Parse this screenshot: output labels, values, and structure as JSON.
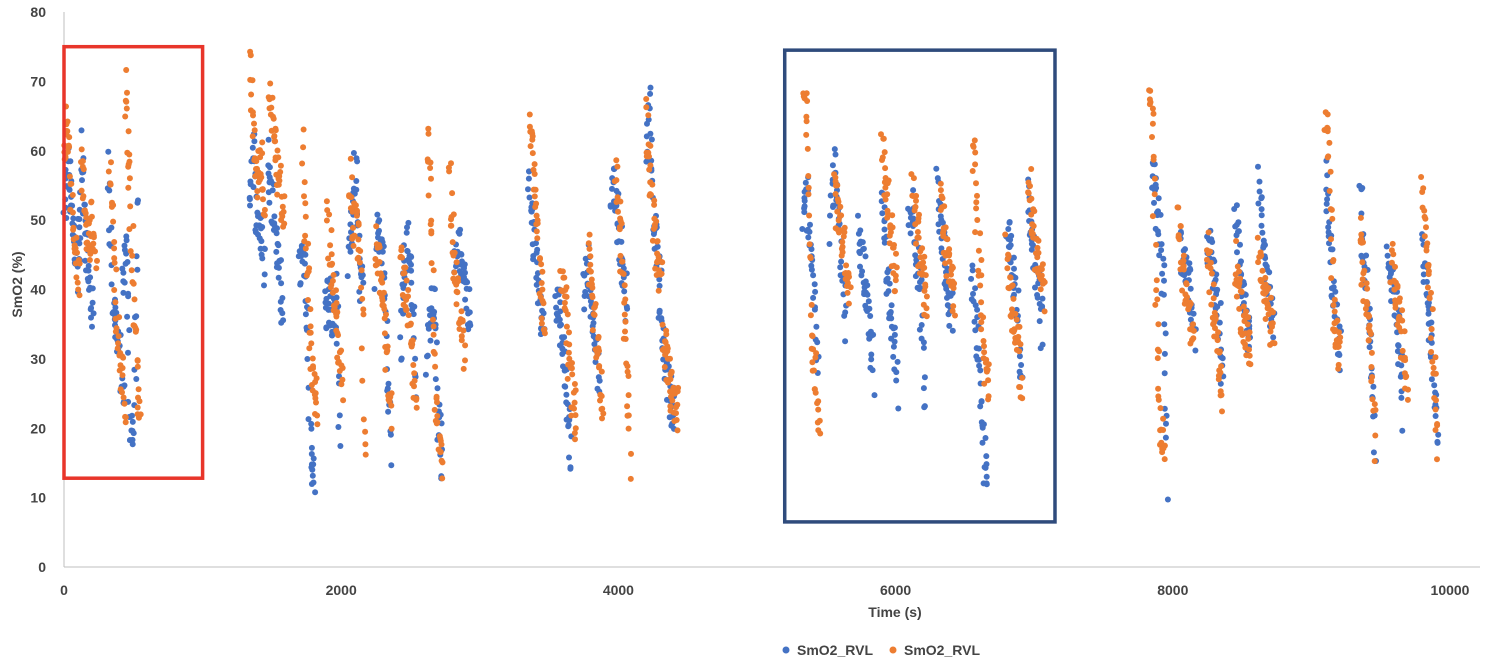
{
  "chart_data": {
    "type": "scatter",
    "title": "",
    "xlabel": "Time (s)",
    "ylabel": "SmO2 (%)",
    "xlim": [
      0,
      10000
    ],
    "ylim": [
      0,
      80
    ],
    "x_ticks": [
      0,
      2000,
      4000,
      6000,
      8000,
      10000
    ],
    "y_ticks": [
      0,
      10,
      20,
      30,
      40,
      50,
      60,
      70,
      80
    ],
    "grid": false,
    "legend": "bottom",
    "colors": {
      "blue": "#4472C4",
      "orange": "#ED7D31",
      "red_box": "#E8352A",
      "navy_box": "#2F4B7C"
    },
    "series": [
      {
        "name": "SmO2_RVL",
        "color": "#4472C4",
        "segments": [
          [
            0,
            50,
            58,
            52,
            44,
            50
          ],
          [
            100,
            40,
            60,
            48,
            40,
            36
          ],
          [
            320,
            60,
            40,
            35,
            30,
            24
          ],
          [
            420,
            40,
            48,
            22,
            18,
            53
          ],
          [
            1340,
            53,
            60,
            48,
            50,
            44
          ],
          [
            1470,
            60,
            54,
            48,
            42,
            37
          ],
          [
            1700,
            42,
            45,
            38,
            15,
            13
          ],
          [
            1880,
            36,
            40,
            34,
            40,
            16
          ],
          [
            2050,
            44,
            50,
            58,
            42,
            40
          ],
          [
            2250,
            42,
            50,
            46,
            30,
            18
          ],
          [
            2430,
            30,
            44,
            48,
            40,
            25
          ],
          [
            2620,
            30,
            36,
            40,
            22,
            12
          ],
          [
            2820,
            42,
            46,
            44,
            40,
            35
          ],
          [
            3350,
            56,
            50,
            44,
            40,
            34
          ],
          [
            3550,
            38,
            36,
            30,
            22,
            16
          ],
          [
            3750,
            40,
            44,
            38,
            32,
            26
          ],
          [
            3950,
            52,
            56,
            48,
            44,
            38
          ],
          [
            4200,
            58,
            66,
            50,
            46,
            40
          ],
          [
            4300,
            36,
            30,
            26,
            24,
            22
          ],
          [
            5330,
            48,
            56,
            46,
            40,
            30
          ],
          [
            5530,
            48,
            60,
            52,
            44,
            34
          ],
          [
            5730,
            48,
            44,
            40,
            36,
            28
          ],
          [
            5900,
            56,
            44,
            38,
            34,
            26
          ],
          [
            6100,
            50,
            52,
            44,
            38,
            23
          ],
          [
            6300,
            56,
            48,
            44,
            38,
            37
          ],
          [
            6550,
            42,
            36,
            30,
            18,
            11
          ],
          [
            6800,
            46,
            48,
            42,
            36,
            24
          ],
          [
            6950,
            54,
            50,
            44,
            40,
            34
          ],
          [
            7850,
            58,
            54,
            48,
            40,
            13
          ],
          [
            8050,
            46,
            44,
            42,
            40,
            30
          ],
          [
            8250,
            48,
            44,
            40,
            36,
            27
          ],
          [
            8450,
            50,
            46,
            40,
            36,
            31
          ],
          [
            8620,
            55,
            46,
            42,
            38,
            35
          ],
          [
            9100,
            56,
            48,
            40,
            34,
            30
          ],
          [
            9350,
            55,
            44,
            38,
            30,
            15
          ],
          [
            9550,
            45,
            42,
            38,
            32,
            22
          ],
          [
            9800,
            46,
            40,
            34,
            26,
            19
          ]
        ]
      },
      {
        "name": "SmO2_RVL",
        "color": "#ED7D31",
        "segments": [
          [
            0,
            60,
            64,
            54,
            46,
            42
          ],
          [
            120,
            58,
            52,
            46,
            50,
            44
          ],
          [
            330,
            58,
            46,
            34,
            28,
            24
          ],
          [
            440,
            72,
            60,
            44,
            30,
            21
          ],
          [
            1340,
            72,
            62,
            56,
            60,
            52
          ],
          [
            1480,
            69,
            64,
            58,
            54,
            50
          ],
          [
            1720,
            62,
            46,
            34,
            26,
            22
          ],
          [
            1900,
            51,
            44,
            38,
            30,
            26
          ],
          [
            2060,
            56,
            50,
            48,
            44,
            15
          ],
          [
            2250,
            48,
            42,
            38,
            30,
            20
          ],
          [
            2430,
            46,
            40,
            36,
            30,
            25
          ],
          [
            2620,
            63,
            50,
            28,
            20,
            16
          ],
          [
            2780,
            57,
            46,
            40,
            36,
            30
          ],
          [
            3360,
            66,
            60,
            50,
            40,
            36
          ],
          [
            3590,
            44,
            38,
            30,
            24,
            21
          ],
          [
            3780,
            46,
            40,
            34,
            28,
            24
          ],
          [
            3980,
            58,
            50,
            40,
            30,
            16
          ],
          [
            4200,
            65,
            58,
            50,
            44,
            40
          ],
          [
            4320,
            34,
            30,
            26,
            24,
            22
          ],
          [
            5340,
            70,
            62,
            34,
            28,
            20
          ],
          [
            5560,
            56,
            50,
            48,
            44,
            40
          ],
          [
            5900,
            62,
            56,
            50,
            46,
            40
          ],
          [
            6120,
            55,
            50,
            46,
            42,
            36
          ],
          [
            6320,
            54,
            48,
            44,
            42,
            38
          ],
          [
            6560,
            62,
            50,
            40,
            30,
            26
          ],
          [
            6800,
            46,
            40,
            36,
            32,
            26
          ],
          [
            6960,
            56,
            50,
            46,
            42,
            40
          ],
          [
            7830,
            67,
            62,
            34,
            20,
            16
          ],
          [
            8040,
            50,
            44,
            40,
            36,
            32
          ],
          [
            8250,
            48,
            40,
            36,
            30,
            24
          ],
          [
            8450,
            44,
            40,
            36,
            34,
            30
          ],
          [
            8620,
            46,
            42,
            38,
            36,
            33
          ],
          [
            9100,
            65,
            58,
            40,
            34,
            30
          ],
          [
            9350,
            50,
            42,
            36,
            30,
            18
          ],
          [
            9580,
            44,
            40,
            36,
            32,
            26
          ],
          [
            9800,
            56,
            48,
            40,
            30,
            19
          ]
        ]
      }
    ],
    "annotations": [
      {
        "type": "rect",
        "color": "#E8352A",
        "x": [
          0,
          1000
        ],
        "y": [
          12.8,
          75
        ]
      },
      {
        "type": "rect",
        "color": "#2F4B7C",
        "x": [
          5200,
          7150
        ],
        "y": [
          6.5,
          74.5
        ]
      }
    ]
  }
}
